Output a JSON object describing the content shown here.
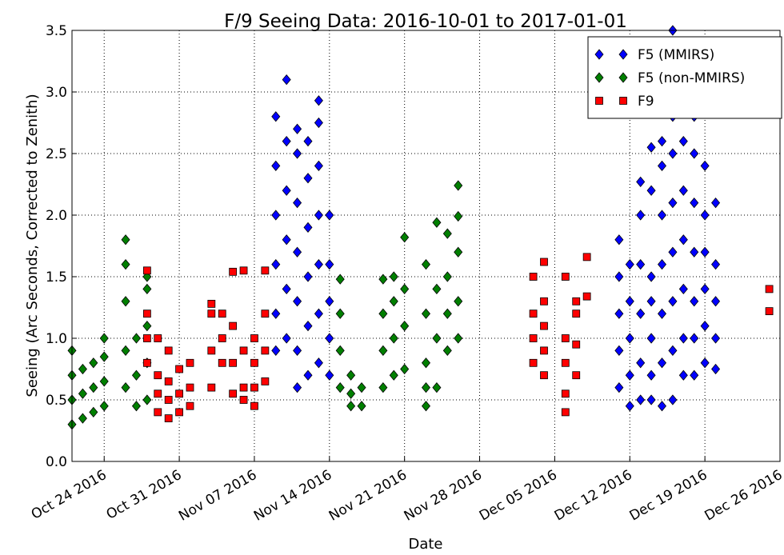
{
  "chart_data": {
    "type": "scatter",
    "title": "F/9 Seeing Data: 2016-10-01 to 2017-01-01",
    "xlabel": "Date",
    "ylabel": "Seeing (Arc Seconds, Corrected to Zenith)",
    "xlim": [
      "2016-10-21",
      "2016-12-26"
    ],
    "xticks": [
      {
        "value": "2016-10-24",
        "label": "Oct 24 2016"
      },
      {
        "value": "2016-10-31",
        "label": "Oct 31 2016"
      },
      {
        "value": "2016-11-07",
        "label": "Nov 07 2016"
      },
      {
        "value": "2016-11-14",
        "label": "Nov 14 2016"
      },
      {
        "value": "2016-11-21",
        "label": "Nov 21 2016"
      },
      {
        "value": "2016-11-28",
        "label": "Nov 28 2016"
      },
      {
        "value": "2016-12-05",
        "label": "Dec 05 2016"
      },
      {
        "value": "2016-12-12",
        "label": "Dec 12 2016"
      },
      {
        "value": "2016-12-19",
        "label": "Dec 19 2016"
      },
      {
        "value": "2016-12-26",
        "label": "Dec 26 2016"
      }
    ],
    "ylim": [
      0,
      3.5
    ],
    "yticks": [
      {
        "value": 0,
        "label": "0.0"
      },
      0.5,
      {
        "value": 1,
        "label": "1.0"
      },
      1.5,
      {
        "value": 2,
        "label": "2.0"
      },
      2.5,
      {
        "value": 3,
        "label": "3.0"
      },
      3.5
    ],
    "grid": true,
    "legend": "upper right",
    "series": [
      {
        "name": "F5 (MMIRS)",
        "color": "#0000ff",
        "marker": "diamond",
        "x": [
          "2016-11-09",
          "2016-11-09",
          "2016-11-09",
          "2016-11-09",
          "2016-11-09",
          "2016-11-09",
          "2016-11-10",
          "2016-11-10",
          "2016-11-10",
          "2016-11-10",
          "2016-11-10",
          "2016-11-10",
          "2016-11-11",
          "2016-11-11",
          "2016-11-11",
          "2016-11-11",
          "2016-11-11",
          "2016-11-11",
          "2016-11-11",
          "2016-11-12",
          "2016-11-12",
          "2016-11-12",
          "2016-11-12",
          "2016-11-12",
          "2016-11-12",
          "2016-11-13",
          "2016-11-13",
          "2016-11-13",
          "2016-11-13",
          "2016-11-13",
          "2016-11-13",
          "2016-11-13",
          "2016-11-14",
          "2016-11-14",
          "2016-11-14",
          "2016-11-14",
          "2016-11-14",
          "2016-12-11",
          "2016-12-11",
          "2016-12-11",
          "2016-12-11",
          "2016-12-11",
          "2016-12-12",
          "2016-12-12",
          "2016-12-12",
          "2016-12-12",
          "2016-12-12",
          "2016-12-13",
          "2016-12-13",
          "2016-12-13",
          "2016-12-13",
          "2016-12-13",
          "2016-12-13",
          "2016-12-14",
          "2016-12-14",
          "2016-12-14",
          "2016-12-14",
          "2016-12-14",
          "2016-12-14",
          "2016-12-14",
          "2016-12-15",
          "2016-12-15",
          "2016-12-15",
          "2016-12-15",
          "2016-12-15",
          "2016-12-15",
          "2016-12-15",
          "2016-12-16",
          "2016-12-16",
          "2016-12-16",
          "2016-12-16",
          "2016-12-16",
          "2016-12-16",
          "2016-12-16",
          "2016-12-16",
          "2016-12-17",
          "2016-12-17",
          "2016-12-17",
          "2016-12-17",
          "2016-12-17",
          "2016-12-17",
          "2016-12-18",
          "2016-12-18",
          "2016-12-18",
          "2016-12-18",
          "2016-12-18",
          "2016-12-18",
          "2016-12-18",
          "2016-12-19",
          "2016-12-19",
          "2016-12-19",
          "2016-12-19",
          "2016-12-19",
          "2016-12-19",
          "2016-12-20",
          "2016-12-20",
          "2016-12-20",
          "2016-12-20",
          "2016-12-20"
        ],
        "values": [
          0.9,
          1.2,
          1.6,
          2.0,
          2.4,
          2.8,
          1.0,
          1.4,
          1.8,
          2.2,
          2.6,
          3.1,
          0.6,
          0.9,
          1.3,
          1.7,
          2.1,
          2.5,
          2.7,
          0.7,
          1.1,
          1.5,
          1.9,
          2.3,
          2.6,
          0.8,
          1.2,
          1.6,
          2.0,
          2.4,
          2.75,
          2.93,
          0.7,
          1.0,
          1.3,
          1.6,
          2.0,
          0.6,
          0.9,
          1.2,
          1.5,
          1.8,
          0.45,
          0.7,
          1.0,
          1.3,
          1.6,
          0.5,
          0.8,
          1.2,
          1.6,
          2.0,
          2.27,
          0.5,
          0.7,
          1.0,
          1.3,
          1.5,
          2.2,
          2.55,
          0.45,
          0.8,
          1.2,
          1.6,
          2.0,
          2.4,
          2.6,
          0.5,
          0.9,
          1.3,
          1.7,
          2.1,
          2.5,
          2.8,
          3.5,
          0.7,
          1.0,
          1.4,
          1.8,
          2.2,
          2.6,
          0.7,
          1.0,
          1.3,
          1.7,
          2.1,
          2.5,
          2.8,
          0.8,
          1.1,
          1.4,
          1.7,
          2.0,
          2.4,
          0.75,
          1.0,
          1.3,
          1.6,
          2.1
        ]
      },
      {
        "name": "F5 (non-MMIRS)",
        "color": "#007f00",
        "marker": "diamond",
        "x": [
          "2016-10-21",
          "2016-10-21",
          "2016-10-21",
          "2016-10-21",
          "2016-10-22",
          "2016-10-22",
          "2016-10-22",
          "2016-10-23",
          "2016-10-23",
          "2016-10-23",
          "2016-10-24",
          "2016-10-24",
          "2016-10-24",
          "2016-10-24",
          "2016-10-26",
          "2016-10-26",
          "2016-10-26",
          "2016-10-26",
          "2016-10-26",
          "2016-10-27",
          "2016-10-27",
          "2016-10-27",
          "2016-10-28",
          "2016-10-28",
          "2016-10-28",
          "2016-10-28",
          "2016-10-28",
          "2016-11-15",
          "2016-11-15",
          "2016-11-15",
          "2016-11-15",
          "2016-11-16",
          "2016-11-16",
          "2016-11-16",
          "2016-11-17",
          "2016-11-17",
          "2016-11-19",
          "2016-11-19",
          "2016-11-19",
          "2016-11-19",
          "2016-11-20",
          "2016-11-20",
          "2016-11-20",
          "2016-11-20",
          "2016-11-21",
          "2016-11-21",
          "2016-11-21",
          "2016-11-21",
          "2016-11-23",
          "2016-11-23",
          "2016-11-23",
          "2016-11-23",
          "2016-11-23",
          "2016-11-24",
          "2016-11-24",
          "2016-11-24",
          "2016-11-24",
          "2016-11-25",
          "2016-11-25",
          "2016-11-25",
          "2016-11-25",
          "2016-11-26",
          "2016-11-26",
          "2016-11-26",
          "2016-11-26",
          "2016-11-26"
        ],
        "values": [
          0.3,
          0.5,
          0.7,
          0.9,
          0.35,
          0.55,
          0.75,
          0.4,
          0.6,
          0.8,
          0.45,
          0.65,
          1.0,
          0.85,
          0.6,
          0.9,
          1.3,
          1.6,
          1.8,
          0.45,
          0.7,
          1.0,
          0.5,
          0.8,
          1.1,
          1.5,
          1.4,
          0.6,
          0.9,
          1.2,
          1.48,
          0.45,
          0.55,
          0.7,
          0.45,
          0.6,
          0.6,
          0.9,
          1.2,
          1.48,
          0.7,
          1.0,
          1.3,
          1.5,
          0.75,
          1.1,
          1.4,
          1.82,
          0.45,
          0.6,
          0.8,
          1.2,
          1.6,
          0.6,
          1.0,
          1.4,
          1.94,
          0.9,
          1.2,
          1.5,
          1.85,
          1.0,
          1.3,
          1.7,
          2.24,
          1.99
        ]
      },
      {
        "name": "F9",
        "color": "#ff0000",
        "marker": "square",
        "x": [
          "2016-10-28",
          "2016-10-28",
          "2016-10-28",
          "2016-10-28",
          "2016-10-29",
          "2016-10-29",
          "2016-10-29",
          "2016-10-29",
          "2016-10-30",
          "2016-10-30",
          "2016-10-30",
          "2016-10-30",
          "2016-10-31",
          "2016-10-31",
          "2016-10-31",
          "2016-11-01",
          "2016-11-01",
          "2016-11-01",
          "2016-11-03",
          "2016-11-03",
          "2016-11-03",
          "2016-11-03",
          "2016-11-04",
          "2016-11-04",
          "2016-11-04",
          "2016-11-05",
          "2016-11-05",
          "2016-11-05",
          "2016-11-05",
          "2016-11-06",
          "2016-11-06",
          "2016-11-06",
          "2016-11-06",
          "2016-11-07",
          "2016-11-07",
          "2016-11-07",
          "2016-11-07",
          "2016-11-08",
          "2016-11-08",
          "2016-11-08",
          "2016-11-08",
          "2016-12-03",
          "2016-12-03",
          "2016-12-03",
          "2016-12-03",
          "2016-12-04",
          "2016-12-04",
          "2016-12-04",
          "2016-12-04",
          "2016-12-04",
          "2016-12-06",
          "2016-12-06",
          "2016-12-06",
          "2016-12-06",
          "2016-12-06",
          "2016-12-07",
          "2016-12-07",
          "2016-12-07",
          "2016-12-07",
          "2016-12-08",
          "2016-12-08",
          "2016-12-25",
          "2016-12-25"
        ],
        "values": [
          0.8,
          1.2,
          1.55,
          1.0,
          0.4,
          0.55,
          0.7,
          1.0,
          0.35,
          0.5,
          0.65,
          0.9,
          0.4,
          0.55,
          0.75,
          0.45,
          0.6,
          0.8,
          0.6,
          0.9,
          1.2,
          1.28,
          0.8,
          1.0,
          1.2,
          0.55,
          0.8,
          1.1,
          1.54,
          0.5,
          0.6,
          0.9,
          1.55,
          0.45,
          0.6,
          0.8,
          1.0,
          0.65,
          0.9,
          1.2,
          1.55,
          0.8,
          1.0,
          1.2,
          1.5,
          0.7,
          0.9,
          1.1,
          1.3,
          1.62,
          0.4,
          0.55,
          0.8,
          1.0,
          1.5,
          0.7,
          0.95,
          1.2,
          1.3,
          1.34,
          1.66,
          1.22,
          1.4
        ]
      }
    ]
  }
}
